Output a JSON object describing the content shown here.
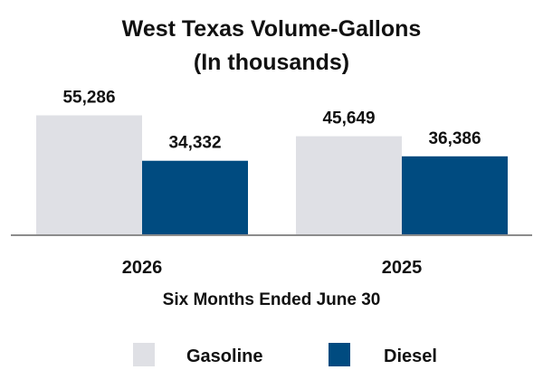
{
  "chart_data": {
    "type": "bar",
    "title": "West Texas Volume-Gallons",
    "subtitle": "(In thousands)",
    "categories": [
      "2026",
      "2025"
    ],
    "series": [
      {
        "name": "Gasoline",
        "values": [
          55286,
          45649
        ],
        "labels": [
          "55,286",
          "45,649"
        ],
        "color": "#dfe0e5"
      },
      {
        "name": "Diesel",
        "values": [
          34332,
          36386
        ],
        "labels": [
          "34,332",
          "36,386"
        ],
        "color": "#004b80"
      }
    ],
    "xlabel": "Six Months Ended June 30",
    "ylabel": "",
    "ylim": [
      0,
      60000
    ],
    "grid": false,
    "legend_position": "bottom"
  },
  "colors": {
    "axis": "#8c8c8c",
    "text": "#111111"
  }
}
